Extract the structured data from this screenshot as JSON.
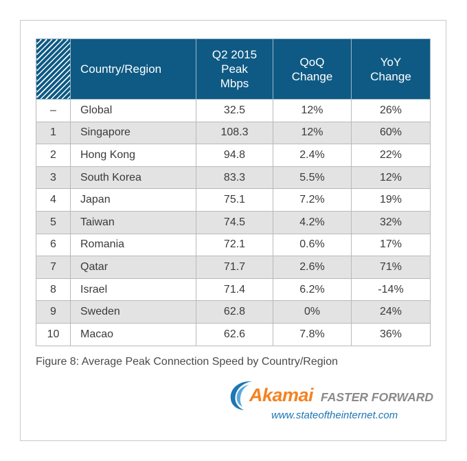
{
  "table": {
    "headers": {
      "rank": "",
      "country": "Country/Region",
      "peak": [
        "Q2 2015",
        "Peak",
        "Mbps"
      ],
      "qoq": [
        "QoQ",
        "Change"
      ],
      "yoy": [
        "YoY",
        "Change"
      ]
    },
    "rows": [
      {
        "rank": "–",
        "country": "Global",
        "peak": "32.5",
        "qoq": "12%",
        "yoy": "26%"
      },
      {
        "rank": "1",
        "country": "Singapore",
        "peak": "108.3",
        "qoq": "12%",
        "yoy": "60%"
      },
      {
        "rank": "2",
        "country": "Hong Kong",
        "peak": "94.8",
        "qoq": "2.4%",
        "yoy": "22%"
      },
      {
        "rank": "3",
        "country": "South Korea",
        "peak": "83.3",
        "qoq": "5.5%",
        "yoy": "12%"
      },
      {
        "rank": "4",
        "country": "Japan",
        "peak": "75.1",
        "qoq": "7.2%",
        "yoy": "19%"
      },
      {
        "rank": "5",
        "country": "Taiwan",
        "peak": "74.5",
        "qoq": "4.2%",
        "yoy": "32%"
      },
      {
        "rank": "6",
        "country": "Romania",
        "peak": "72.1",
        "qoq": "0.6%",
        "yoy": "17%"
      },
      {
        "rank": "7",
        "country": "Qatar",
        "peak": "71.7",
        "qoq": "2.6%",
        "yoy": "71%"
      },
      {
        "rank": "8",
        "country": "Israel",
        "peak": "71.4",
        "qoq": "6.2%",
        "yoy": "-14%"
      },
      {
        "rank": "9",
        "country": "Sweden",
        "peak": "62.8",
        "qoq": "0%",
        "yoy": "24%"
      },
      {
        "rank": "10",
        "country": "Macao",
        "peak": "62.6",
        "qoq": "7.8%",
        "yoy": "36%"
      }
    ]
  },
  "caption": "Figure 8: Average Peak Connection Speed by Country/Region",
  "branding": {
    "logo_icon": "akamai-swoosh-icon",
    "brand": "Akamai",
    "tagline": "FASTER FORWARD",
    "url": "www.stateoftheinternet.com"
  },
  "colors": {
    "header_bg": "#0e5a84",
    "row_alt_bg": "#e3e3e3",
    "brand_orange": "#f58220",
    "url_blue": "#1e76b4"
  }
}
